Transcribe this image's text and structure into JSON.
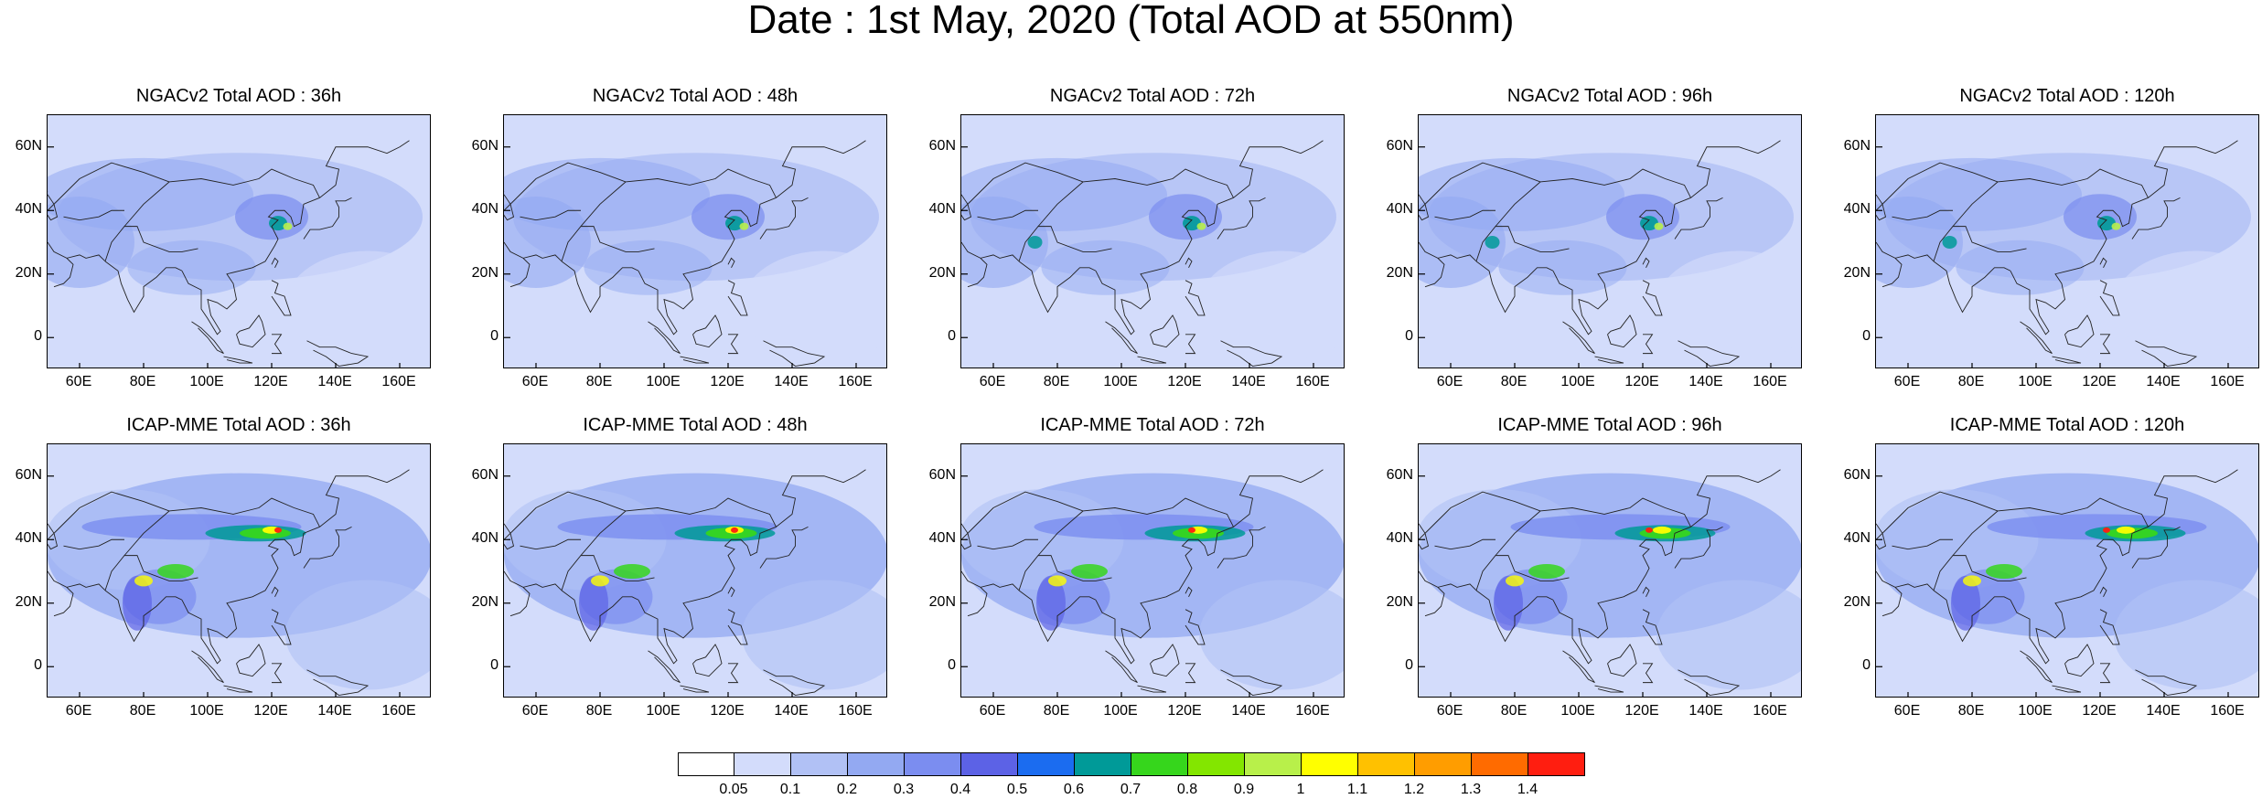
{
  "title": "Date : 1st May, 2020 (Total AOD at 550nm)",
  "lat_ticks": [
    "60N",
    "40N",
    "20N",
    "0"
  ],
  "lon_ticks": [
    "60E",
    "80E",
    "100E",
    "120E",
    "140E",
    "160E"
  ],
  "lat_values": [
    60,
    40,
    20,
    0
  ],
  "lon_values": [
    60,
    80,
    100,
    120,
    140,
    160
  ],
  "map_extent": {
    "lon_min": 50,
    "lon_max": 170,
    "lat_min": -10,
    "lat_max": 70
  },
  "panels": [
    {
      "title": "NGACv2 Total AOD : 36h",
      "model": "NGACv2",
      "lead": "36h",
      "row": 0,
      "col": 0
    },
    {
      "title": "NGACv2 Total AOD : 48h",
      "model": "NGACv2",
      "lead": "48h",
      "row": 0,
      "col": 1
    },
    {
      "title": "NGACv2 Total AOD : 72h",
      "model": "NGACv2",
      "lead": "72h",
      "row": 0,
      "col": 2
    },
    {
      "title": "NGACv2 Total AOD : 96h",
      "model": "NGACv2",
      "lead": "96h",
      "row": 0,
      "col": 3
    },
    {
      "title": "NGACv2 Total AOD : 120h",
      "model": "NGACv2",
      "lead": "120h",
      "row": 0,
      "col": 4
    },
    {
      "title": "ICAP-MME Total AOD : 36h",
      "model": "ICAP-MME",
      "lead": "36h",
      "row": 1,
      "col": 0
    },
    {
      "title": "ICAP-MME Total AOD : 48h",
      "model": "ICAP-MME",
      "lead": "48h",
      "row": 1,
      "col": 1
    },
    {
      "title": "ICAP-MME Total AOD : 72h",
      "model": "ICAP-MME",
      "lead": "72h",
      "row": 1,
      "col": 2
    },
    {
      "title": "ICAP-MME Total AOD : 96h",
      "model": "ICAP-MME",
      "lead": "96h",
      "row": 1,
      "col": 3
    },
    {
      "title": "ICAP-MME Total AOD : 120h",
      "model": "ICAP-MME",
      "lead": "120h",
      "row": 1,
      "col": 4
    }
  ],
  "colorbar": {
    "colors": [
      "#ffffff",
      "#d3dcfb",
      "#b1c1f5",
      "#93a9f2",
      "#7b8df0",
      "#5c62e6",
      "#1b6cf0",
      "#009a98",
      "#36d61c",
      "#83e600",
      "#b8f04a",
      "#ffff00",
      "#ffc100",
      "#ff9d00",
      "#ff6b00",
      "#ff1e10"
    ],
    "labels": [
      "0.05",
      "0.1",
      "0.2",
      "0.3",
      "0.4",
      "0.5",
      "0.6",
      "0.7",
      "0.8",
      "0.9",
      "1",
      "1.1",
      "1.2",
      "1.3",
      "1.4"
    ]
  }
}
